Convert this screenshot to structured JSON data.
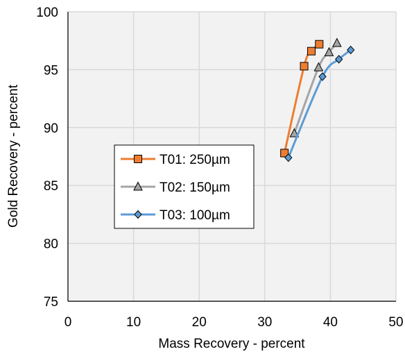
{
  "chart_data": {
    "type": "line",
    "xlabel": "Mass Recovery - percent",
    "ylabel": "Gold Recovery - percent",
    "xlim": [
      0,
      50
    ],
    "ylim": [
      75,
      100
    ],
    "x_ticks": [
      "0",
      "10",
      "20",
      "30",
      "40",
      "50"
    ],
    "y_ticks": [
      "75",
      "80",
      "85",
      "90",
      "95",
      "100"
    ],
    "grid": true,
    "legend_position": "center-left",
    "series": [
      {
        "name": "T01: 250µm",
        "color": "#ED7D31",
        "marker": "square",
        "x": [
          33.0,
          36.0,
          37.1,
          38.3
        ],
        "y": [
          87.8,
          95.3,
          96.6,
          97.2
        ]
      },
      {
        "name": "T02: 150µm",
        "color": "#A5A5A5",
        "marker": "triangle",
        "x": [
          34.5,
          38.2,
          39.8,
          41.0
        ],
        "y": [
          89.5,
          95.2,
          96.5,
          97.3
        ]
      },
      {
        "name": "T03: 100µm",
        "color": "#5B9BD5",
        "marker": "diamond",
        "x": [
          33.6,
          38.8,
          41.3,
          43.1
        ],
        "y": [
          87.4,
          94.4,
          95.9,
          96.7
        ]
      }
    ]
  }
}
